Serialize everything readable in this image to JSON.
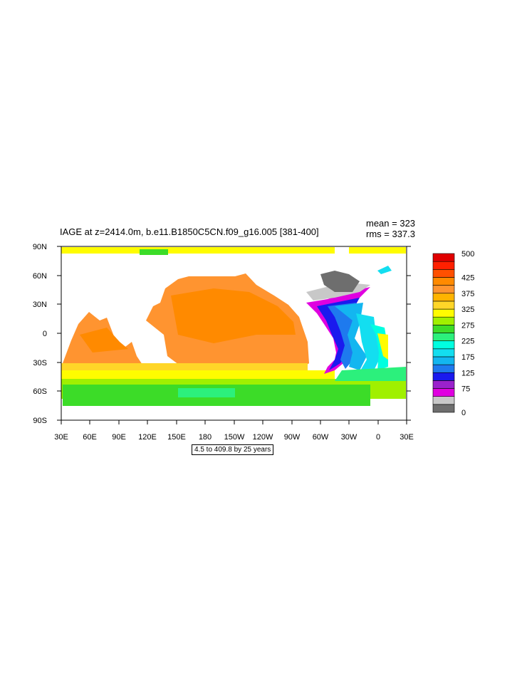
{
  "title": "IAGE at z=2414.0m, b.e11.B1850C5CN.f09_g16.005 [381-400]",
  "stats": {
    "mean": "mean = 323",
    "rms": "rms = 337.3"
  },
  "lat_labels": [
    "90N",
    "60N",
    "30N",
    "0",
    "30S",
    "60S",
    "90S"
  ],
  "lon_labels": [
    "30E",
    "60E",
    "90E",
    "120E",
    "150E",
    "180",
    "150W",
    "120W",
    "90W",
    "60W",
    "30W",
    "0",
    "30E"
  ],
  "colorbar": {
    "colors": [
      "#6e6e6e",
      "#c8c8c8",
      "#e000e0",
      "#9a22cc",
      "#1a1aee",
      "#1e7aee",
      "#13b6f0",
      "#13def0",
      "#00ffe0",
      "#2cf07c",
      "#3cdc28",
      "#a0f000",
      "#fffc00",
      "#ffd628",
      "#ffb400",
      "#ff9430",
      "#ff8a00",
      "#ff5000",
      "#ff2000",
      "#e00000"
    ],
    "labels": [
      {
        "text": "0",
        "pos": 0
      },
      {
        "text": "75",
        "pos": 3
      },
      {
        "text": "125",
        "pos": 5
      },
      {
        "text": "175",
        "pos": 7
      },
      {
        "text": "225",
        "pos": 9
      },
      {
        "text": "275",
        "pos": 11
      },
      {
        "text": "325",
        "pos": 13
      },
      {
        "text": "375",
        "pos": 15
      },
      {
        "text": "425",
        "pos": 17
      },
      {
        "text": "500",
        "pos": 20
      }
    ]
  },
  "info_label": "4.5 to 409.8 by 25 years"
}
